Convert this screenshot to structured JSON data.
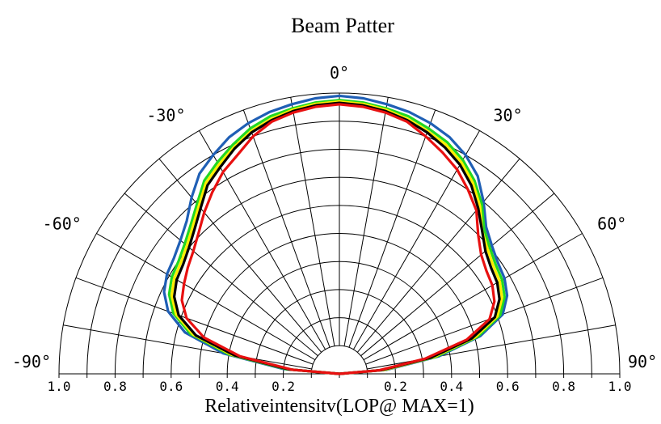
{
  "chart_data": {
    "type": "polar-line",
    "title": "Beam Patter",
    "xlabel": "Relativeintensitv(LOP@ MAX=1)",
    "angle_range_deg": [
      -90,
      90
    ],
    "angle_ticks": [
      "0°",
      "30°",
      "-30°",
      "60°",
      "-60°",
      "90°",
      "-90°"
    ],
    "radius_range": [
      0,
      1.0
    ],
    "radius_tick_labels_left": [
      "1.0",
      "0.8",
      "0.6",
      "0.4",
      "0.2"
    ],
    "radius_tick_labels_right": [
      "0.2",
      "0.4",
      "0.6",
      "0.8",
      "1.0"
    ],
    "grid": true,
    "colors": {
      "blue": "#1f5fb5",
      "green": "#22d822",
      "yellow": "#ffee00",
      "black": "#000000",
      "red": "#e81010",
      "grid": "#000000"
    },
    "series": [
      {
        "color": "blue",
        "angles": [
          -90,
          -85,
          -80,
          -75,
          -70,
          -65,
          -60,
          -55,
          -50,
          -45,
          -40,
          -35,
          -30,
          -25,
          -20,
          -15,
          -10,
          -5,
          0,
          5,
          10,
          15,
          20,
          25,
          30,
          35,
          40,
          45,
          50,
          55,
          60,
          65,
          70,
          75,
          80,
          85,
          90
        ],
        "values": [
          0.0,
          0.2,
          0.42,
          0.57,
          0.65,
          0.69,
          0.71,
          0.72,
          0.74,
          0.77,
          0.82,
          0.87,
          0.9,
          0.93,
          0.95,
          0.965,
          0.975,
          0.985,
          0.99,
          0.985,
          0.975,
          0.965,
          0.95,
          0.93,
          0.9,
          0.86,
          0.8,
          0.74,
          0.71,
          0.69,
          0.68,
          0.66,
          0.62,
          0.52,
          0.36,
          0.17,
          0.0
        ]
      },
      {
        "color": "green",
        "angles": [
          -90,
          -85,
          -80,
          -75,
          -70,
          -65,
          -60,
          -55,
          -50,
          -45,
          -40,
          -35,
          -30,
          -25,
          -20,
          -15,
          -10,
          -5,
          0,
          5,
          10,
          15,
          20,
          25,
          30,
          35,
          40,
          45,
          50,
          55,
          60,
          65,
          70,
          75,
          80,
          85,
          90
        ],
        "values": [
          0.0,
          0.19,
          0.4,
          0.55,
          0.63,
          0.67,
          0.69,
          0.7,
          0.72,
          0.75,
          0.79,
          0.84,
          0.87,
          0.9,
          0.93,
          0.95,
          0.96,
          0.97,
          0.975,
          0.97,
          0.96,
          0.95,
          0.93,
          0.91,
          0.88,
          0.84,
          0.79,
          0.73,
          0.7,
          0.68,
          0.67,
          0.65,
          0.61,
          0.51,
          0.35,
          0.16,
          0.0
        ]
      },
      {
        "color": "yellow",
        "angles": [
          -90,
          -85,
          -80,
          -75,
          -70,
          -65,
          -60,
          -55,
          -50,
          -45,
          -40,
          -35,
          -30,
          -25,
          -20,
          -15,
          -10,
          -5,
          0,
          5,
          10,
          15,
          20,
          25,
          30,
          35,
          40,
          45,
          50,
          55,
          60,
          65,
          70,
          75,
          80,
          85,
          90
        ],
        "values": [
          0.0,
          0.18,
          0.39,
          0.54,
          0.62,
          0.66,
          0.68,
          0.69,
          0.71,
          0.74,
          0.78,
          0.83,
          0.86,
          0.89,
          0.92,
          0.94,
          0.955,
          0.965,
          0.97,
          0.965,
          0.955,
          0.94,
          0.92,
          0.9,
          0.87,
          0.83,
          0.78,
          0.72,
          0.69,
          0.67,
          0.66,
          0.64,
          0.6,
          0.5,
          0.34,
          0.16,
          0.0
        ]
      },
      {
        "color": "black",
        "angles": [
          -90,
          -85,
          -80,
          -75,
          -70,
          -65,
          -60,
          -55,
          -50,
          -45,
          -40,
          -35,
          -30,
          -25,
          -20,
          -15,
          -10,
          -5,
          0,
          5,
          10,
          15,
          20,
          25,
          30,
          35,
          40,
          45,
          50,
          55,
          60,
          65,
          70,
          75,
          80,
          85,
          90
        ],
        "values": [
          0.0,
          0.18,
          0.38,
          0.53,
          0.61,
          0.65,
          0.67,
          0.68,
          0.7,
          0.73,
          0.77,
          0.82,
          0.85,
          0.885,
          0.915,
          0.935,
          0.95,
          0.96,
          0.965,
          0.96,
          0.95,
          0.935,
          0.915,
          0.89,
          0.86,
          0.82,
          0.77,
          0.72,
          0.68,
          0.66,
          0.65,
          0.63,
          0.59,
          0.49,
          0.33,
          0.15,
          0.0
        ]
      },
      {
        "color": "red",
        "angles": [
          -90,
          -85,
          -80,
          -75,
          -70,
          -65,
          -60,
          -55,
          -50,
          -45,
          -40,
          -35,
          -30,
          -25,
          -20,
          -15,
          -10,
          -5,
          0,
          5,
          10,
          15,
          20,
          25,
          30,
          35,
          40,
          45,
          50,
          55,
          60,
          65,
          70,
          75,
          80,
          85,
          90
        ],
        "values": [
          0.0,
          0.17,
          0.36,
          0.5,
          0.58,
          0.62,
          0.64,
          0.66,
          0.68,
          0.71,
          0.75,
          0.79,
          0.83,
          0.86,
          0.9,
          0.93,
          0.945,
          0.955,
          0.96,
          0.955,
          0.945,
          0.93,
          0.9,
          0.87,
          0.84,
          0.8,
          0.76,
          0.7,
          0.66,
          0.64,
          0.63,
          0.61,
          0.57,
          0.47,
          0.31,
          0.14,
          0.0
        ]
      }
    ]
  }
}
